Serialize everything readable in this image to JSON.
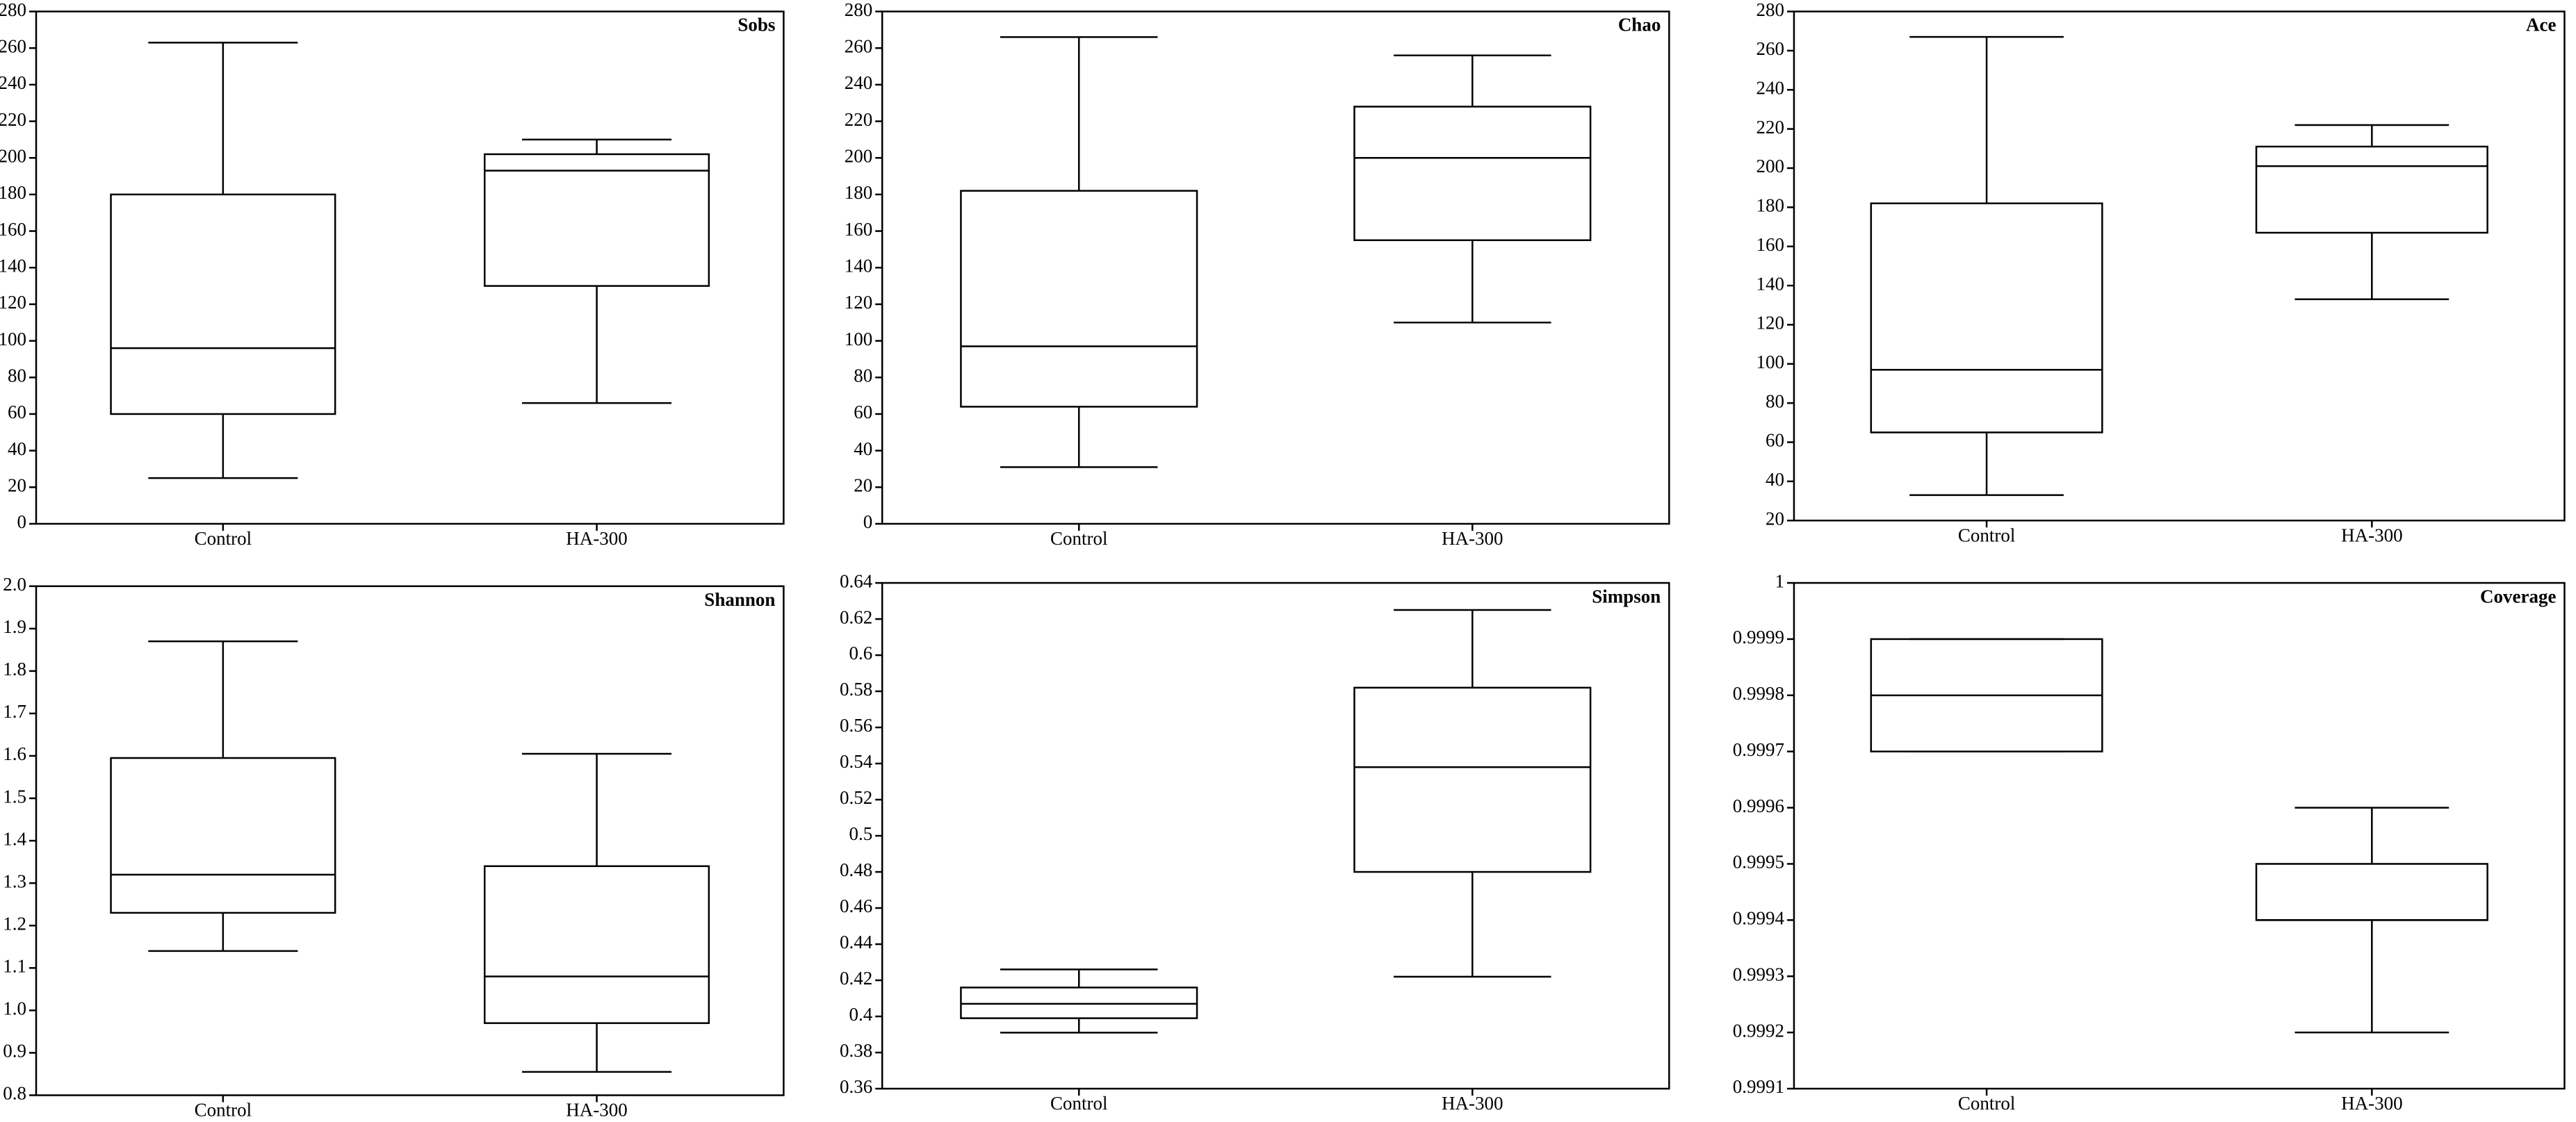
{
  "chart_data": [
    {
      "type": "box",
      "title": "Sobs",
      "categories": [
        "Control",
        "HA-300"
      ],
      "boxes": [
        {
          "min": 25,
          "q1": 60,
          "median": 96,
          "q3": 180,
          "max": 263
        },
        {
          "min": 66,
          "q1": 130,
          "median": 193,
          "q3": 202,
          "max": 210
        }
      ],
      "ylim": [
        0,
        280
      ],
      "yticks": [
        0,
        20,
        40,
        60,
        80,
        100,
        120,
        140,
        160,
        180,
        200,
        220,
        240,
        260,
        280
      ]
    },
    {
      "type": "box",
      "title": "Chao",
      "categories": [
        "Control",
        "HA-300"
      ],
      "boxes": [
        {
          "min": 31,
          "q1": 64,
          "median": 97,
          "q3": 182,
          "max": 266
        },
        {
          "min": 110,
          "q1": 155,
          "median": 200,
          "q3": 228,
          "max": 256
        }
      ],
      "ylim": [
        0,
        280
      ],
      "yticks": [
        0,
        20,
        40,
        60,
        80,
        100,
        120,
        140,
        160,
        180,
        200,
        220,
        240,
        260,
        280
      ]
    },
    {
      "type": "box",
      "title": "Ace",
      "categories": [
        "Control",
        "HA-300"
      ],
      "boxes": [
        {
          "min": 33,
          "q1": 65,
          "median": 97,
          "q3": 182,
          "max": 267
        },
        {
          "min": 133,
          "q1": 167,
          "median": 201,
          "q3": 211,
          "max": 222
        }
      ],
      "ylim": [
        20,
        280
      ],
      "yticks": [
        20,
        40,
        60,
        80,
        100,
        120,
        140,
        160,
        180,
        200,
        220,
        240,
        260,
        280
      ]
    },
    {
      "type": "box",
      "title": "Shannon",
      "categories": [
        "Control",
        "HA-300"
      ],
      "boxes": [
        {
          "min": 1.14,
          "q1": 1.23,
          "median": 1.32,
          "q3": 1.595,
          "max": 1.87
        },
        {
          "min": 0.855,
          "q1": 0.97,
          "median": 1.08,
          "q3": 1.34,
          "max": 1.605
        }
      ],
      "ylim": [
        0.8,
        2.0
      ],
      "yticks": [
        0.8,
        0.9,
        {
          "value": 1.0,
          "label": "1.0"
        },
        1.1,
        1.2,
        1.3,
        1.4,
        1.5,
        1.6,
        1.7,
        1.8,
        1.9,
        {
          "value": 2.0,
          "label": "2.0"
        }
      ]
    },
    {
      "type": "box",
      "title": "Simpson",
      "categories": [
        "Control",
        "HA-300"
      ],
      "boxes": [
        {
          "min": 0.391,
          "q1": 0.399,
          "median": 0.407,
          "q3": 0.416,
          "max": 0.426
        },
        {
          "min": 0.422,
          "q1": 0.48,
          "median": 0.538,
          "q3": 0.582,
          "max": 0.625
        }
      ],
      "ylim": [
        0.36,
        0.64
      ],
      "yticks": [
        0.36,
        0.38,
        0.4,
        0.42,
        0.44,
        0.46,
        0.48,
        0.5,
        0.52,
        0.54,
        0.56,
        0.58,
        0.6,
        0.62,
        0.64
      ]
    },
    {
      "type": "box",
      "title": "Coverage",
      "categories": [
        "Control",
        "HA-300"
      ],
      "boxes": [
        {
          "min": 0.9997,
          "q1": 0.9997,
          "median": 0.9998,
          "q3": 0.9999,
          "max": 0.9999
        },
        {
          "min": 0.9992,
          "q1": 0.9994,
          "median": 0.9994,
          "q3": 0.9995,
          "max": 0.9996
        }
      ],
      "ylim": [
        0.9991,
        1
      ],
      "yticks": [
        0.9991,
        0.9992,
        0.9993,
        0.9994,
        0.9995,
        0.9996,
        0.9997,
        0.9998,
        0.9999,
        1
      ]
    }
  ]
}
